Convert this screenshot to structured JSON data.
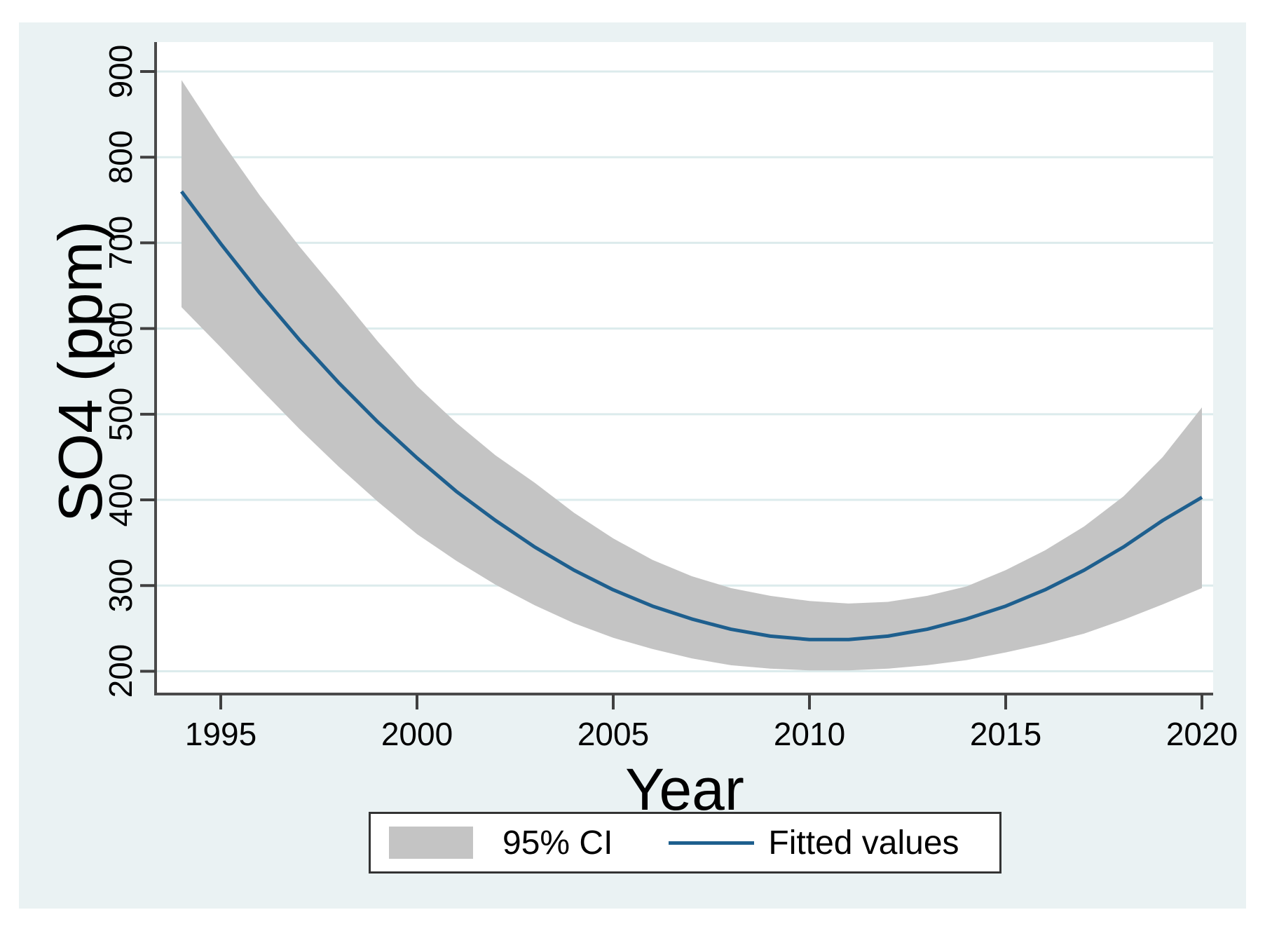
{
  "colors": {
    "figure_background": "#eaf2f3",
    "plot_background": "#ffffff",
    "gridline": "#dcebec",
    "axis_line": "#4a4a4a",
    "tick_mark": "#404040",
    "ci_band": "#c4c4c4",
    "fitted_line": "#1e5f8e",
    "legend_border": "#333333",
    "legend_background": "#ffffff",
    "text": "#000000"
  },
  "chart_data": {
    "type": "area",
    "title": "",
    "xlabel": "Year",
    "ylabel": "SO4 (ppm)",
    "xlim": [
      1993.4,
      2020.3
    ],
    "ylim": [
      155,
      933
    ],
    "x_ticks": [
      1995,
      2000,
      2005,
      2010,
      2015,
      2020
    ],
    "y_ticks": [
      200,
      300,
      400,
      500,
      600,
      700,
      800,
      900
    ],
    "grid": "horizontal",
    "legend_position": "bottom-center",
    "x": [
      1994,
      1995,
      1996,
      1997,
      1998,
      1999,
      2000,
      2001,
      2002,
      2003,
      2004,
      2005,
      2006,
      2007,
      2008,
      2009,
      2010,
      2011,
      2012,
      2013,
      2014,
      2015,
      2016,
      2017,
      2018,
      2019,
      2020
    ],
    "series": [
      {
        "name": "95% CI",
        "type": "band",
        "upper": [
          890,
          820,
          755,
          696,
          641,
          585,
          533,
          490,
          452,
          420,
          385,
          355,
          330,
          311,
          297,
          288,
          282,
          279,
          281,
          288,
          299,
          318,
          341,
          369,
          404,
          450,
          508
        ],
        "lower": [
          625,
          578,
          530,
          483,
          439,
          398,
          360,
          329,
          301,
          277,
          256,
          239,
          226,
          215,
          207,
          203,
          201,
          201,
          203,
          207,
          213,
          222,
          232,
          244,
          260,
          278,
          297
        ]
      },
      {
        "name": "Fitted values",
        "type": "line",
        "values": [
          760,
          699,
          641,
          587,
          537,
          491,
          449,
          410,
          376,
          345,
          318,
          295,
          276,
          261,
          249,
          241,
          237,
          237,
          241,
          249,
          261,
          276,
          295,
          318,
          345,
          376,
          403
        ]
      }
    ]
  }
}
